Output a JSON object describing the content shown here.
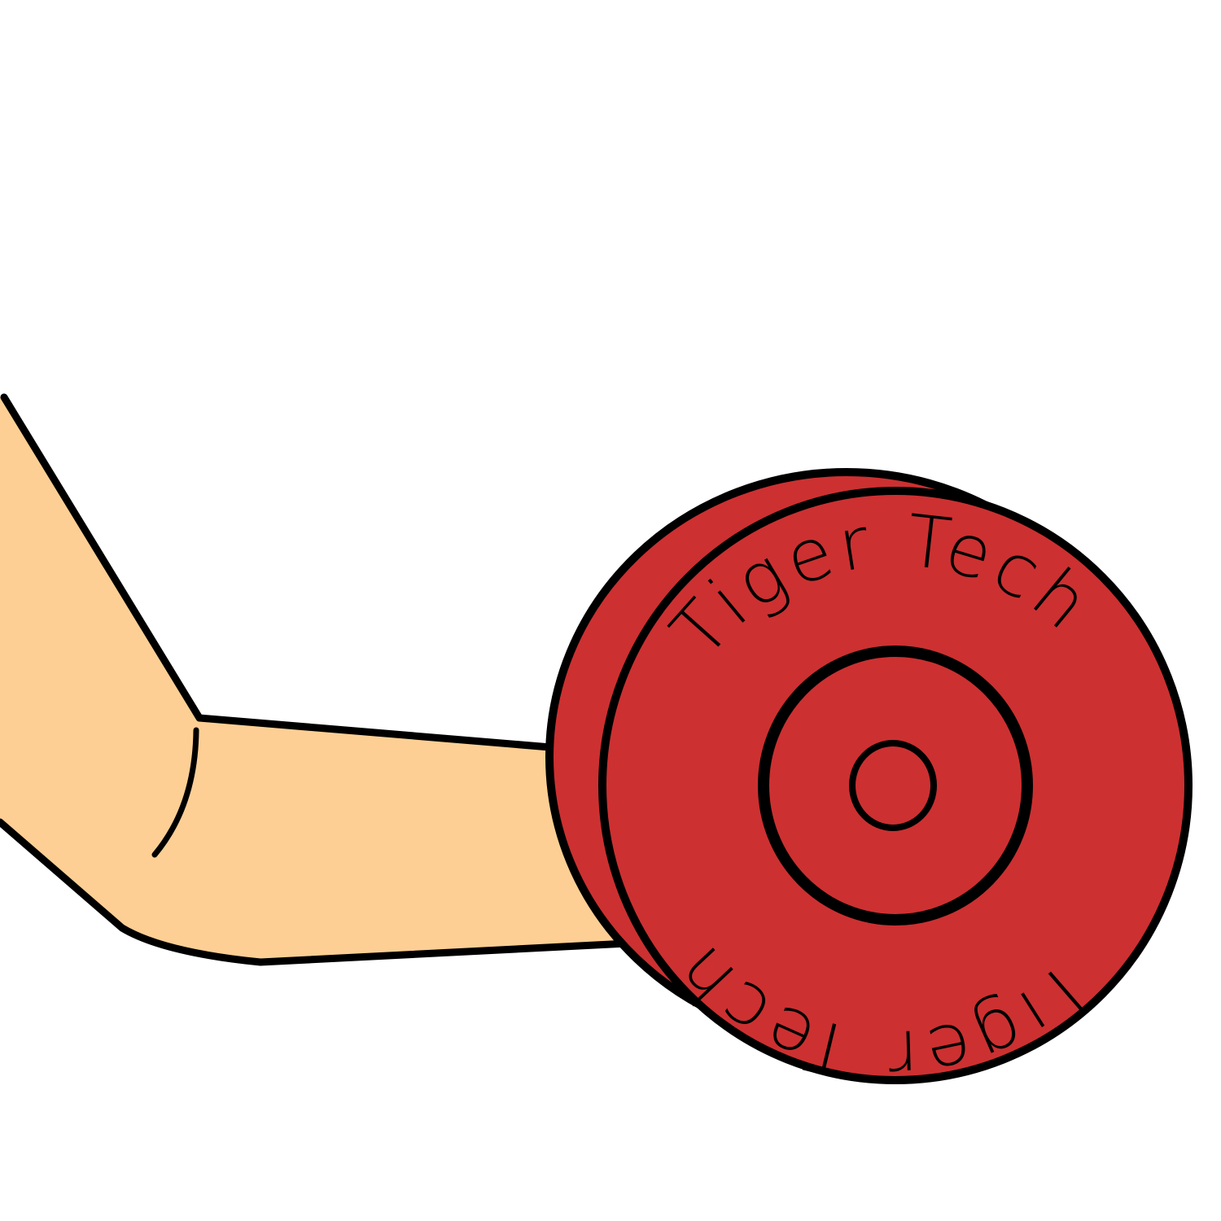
{
  "illustration": {
    "plate_text_top": "Tiger Tech",
    "plate_text_bottom": "Tiger Tech",
    "colors": {
      "background": "#ffffff",
      "skin": "#fdcf94",
      "plate": "#cd3031",
      "outline": "#000000"
    }
  }
}
